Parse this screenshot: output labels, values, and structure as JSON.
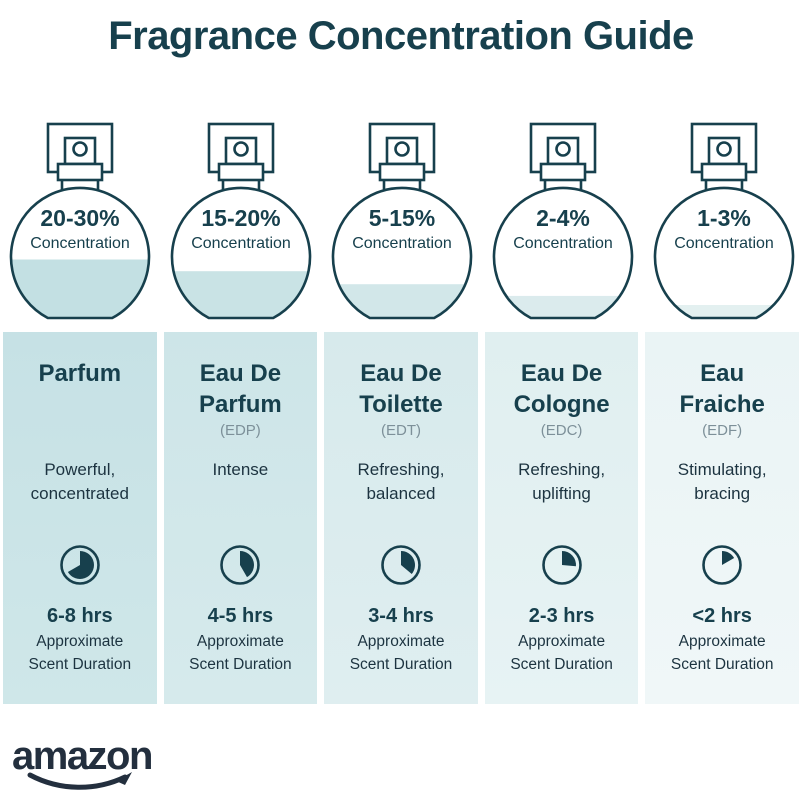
{
  "theme": {
    "ink": "#17404d",
    "abbr_gray": "#7d9099",
    "brand_color": "#232f3e",
    "page_bg": "#ffffff"
  },
  "page": {
    "title": "Fragrance Concentration Guide"
  },
  "brand": {
    "name": "amazon"
  },
  "columns": [
    {
      "name": "Parfum",
      "abbr": "",
      "description": "Powerful,\nconcentrated",
      "concentration": "20-30%",
      "concentration_label": "Concentration",
      "fill_percent": 45,
      "fill_color": "#c3e0e3",
      "card_bg_top": "#c6e1e5",
      "card_bg_bottom": "#cfe7e9",
      "duration": "6-8 hrs",
      "duration_label": "Approximate\nScent Duration",
      "clock_degrees": 240
    },
    {
      "name": "Eau De\nParfum",
      "abbr": "(EDP)",
      "description": "Intense",
      "concentration": "15-20%",
      "concentration_label": "Concentration",
      "fill_percent": 36,
      "fill_color": "#c9e3e5",
      "card_bg_top": "#cde5e8",
      "card_bg_bottom": "#d6eaec",
      "duration": "4-5 hrs",
      "duration_label": "Approximate\nScent Duration",
      "clock_degrees": 150
    },
    {
      "name": "Eau De\nToilette",
      "abbr": "(EDT)",
      "description": "Refreshing,\nbalanced",
      "concentration": "5-15%",
      "concentration_label": "Concentration",
      "fill_percent": 26,
      "fill_color": "#d2e7e9",
      "card_bg_top": "#d7eaec",
      "card_bg_bottom": "#dfeef0",
      "duration": "3-4 hrs",
      "duration_label": "Approximate\nScent Duration",
      "clock_degrees": 130
    },
    {
      "name": "Eau De\nCologne",
      "abbr": "(EDC)",
      "description": "Refreshing,\nuplifting",
      "concentration": "2-4%",
      "concentration_label": "Concentration",
      "fill_percent": 17,
      "fill_color": "#dbebed",
      "card_bg_top": "#e0eff0",
      "card_bg_bottom": "#e7f3f4",
      "duration": "2-3 hrs",
      "duration_label": "Approximate\nScent Duration",
      "clock_degrees": 95
    },
    {
      "name": "Eau\nFraiche",
      "abbr": "(EDF)",
      "description": "Stimulating,\nbracing",
      "concentration": "1-3%",
      "concentration_label": "Concentration",
      "fill_percent": 10,
      "fill_color": "#e3f0f0",
      "card_bg_top": "#eaf4f5",
      "card_bg_bottom": "#f0f7f8",
      "duration": "<2 hrs",
      "duration_label": "Approximate\nScent Duration",
      "clock_degrees": 60
    }
  ]
}
